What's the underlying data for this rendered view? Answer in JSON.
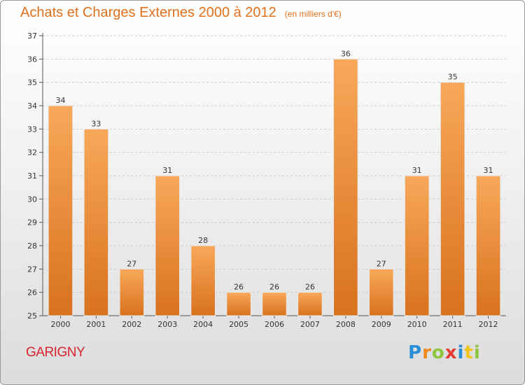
{
  "title": "Achats et Charges Externes 2000 à 2012",
  "subtitle": "(en milliers d'€)",
  "commune": "GARIGNY",
  "logo": [
    "P",
    "r",
    "o",
    "x",
    "i",
    "t",
    "i"
  ],
  "colors": {
    "bar_top": "#f8a85a",
    "bar_bottom": "#d8721e",
    "title": "#e0701a",
    "commune": "#d9232e",
    "grid": "#cccccc"
  },
  "chart_data": {
    "type": "bar",
    "categories": [
      "2000",
      "2001",
      "2002",
      "2003",
      "2004",
      "2005",
      "2006",
      "2007",
      "2008",
      "2009",
      "2010",
      "2011",
      "2012"
    ],
    "values": [
      34,
      33,
      27,
      31,
      28,
      26,
      26,
      26,
      36,
      27,
      31,
      35,
      31
    ],
    "ylim": [
      25,
      37
    ],
    "yticks": [
      25,
      26,
      27,
      28,
      29,
      30,
      31,
      32,
      33,
      34,
      35,
      36,
      37
    ],
    "grid": "horizontal dashed"
  }
}
